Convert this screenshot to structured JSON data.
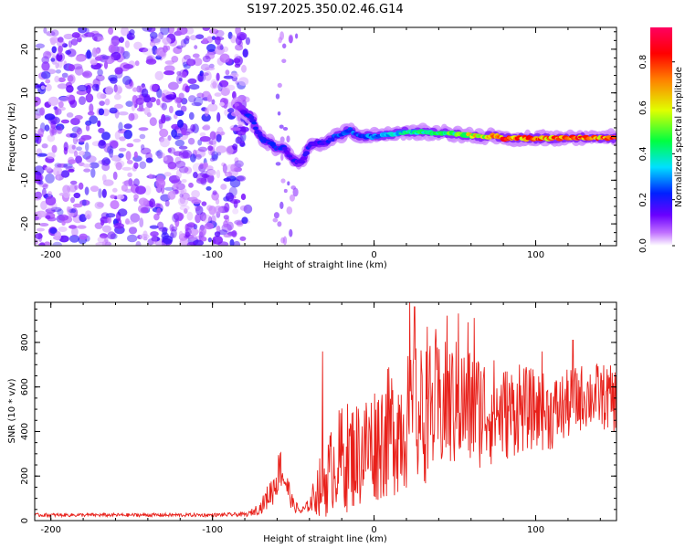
{
  "title": "S197.2025.350.02.46.G14",
  "colors": {
    "snr_line": "#e8201a",
    "axis": "#000000",
    "background": "#ffffff"
  },
  "chart_data": [
    {
      "type": "heatmap",
      "name": "spectrogram",
      "xlabel": "Height of straight line (km)",
      "ylabel": "Frequency (Hz)",
      "xlim": [
        -210,
        150
      ],
      "ylim": [
        -25,
        25
      ],
      "xticks": [
        -200,
        -100,
        0,
        100
      ],
      "yticks": [
        -20,
        -10,
        0,
        10,
        20
      ],
      "xtick_labels": [
        "-200",
        "-100",
        "0",
        "100"
      ],
      "ytick_labels": [
        "-20",
        "-10",
        "0",
        "10",
        "20"
      ],
      "colorbar": {
        "label": "Normalized spectral amplitude",
        "range": [
          0,
          0.95
        ],
        "ticks": [
          0.0,
          0.2,
          0.4,
          0.6,
          0.8
        ],
        "tick_labels": [
          "0.0",
          "0.2",
          "0.4",
          "0.6",
          "0.8"
        ],
        "colormap": [
          "#ffffff",
          "#c070ff",
          "#6a00ff",
          "#0020ff",
          "#00e0ff",
          "#00ff40",
          "#e0ff00",
          "#ff8000",
          "#ff0000",
          "#ff0060"
        ]
      },
      "noise_region": {
        "x_range": [
          -210,
          -78
        ],
        "amplitude": [
          0.05,
          0.3
        ]
      },
      "signal_track": {
        "height_km": [
          -85,
          -80,
          -76,
          -72,
          -68,
          -64,
          -60,
          -56,
          -52,
          -48,
          -44,
          -40,
          -36,
          -30,
          -24,
          -20,
          -15,
          -10,
          0,
          10,
          20,
          30,
          40,
          50,
          60,
          70,
          75,
          80,
          90,
          100,
          110,
          120,
          130,
          140,
          150
        ],
        "frequency_hz": [
          7,
          5.5,
          4.5,
          1,
          -1,
          -1.5,
          -3,
          -2.5,
          -4.5,
          -6,
          -5.5,
          -2,
          -1.5,
          -1.5,
          0,
          0.5,
          1.5,
          0.2,
          0,
          0.5,
          1,
          1,
          0.8,
          0.6,
          0.2,
          0,
          0.3,
          -0.5,
          -0.3,
          -0.5,
          -0.4,
          -0.3,
          -0.3,
          -0.3,
          -0.3
        ],
        "amplitude": [
          0.15,
          0.3,
          0.35,
          0.3,
          0.35,
          0.3,
          0.35,
          0.3,
          0.25,
          0.3,
          0.25,
          0.35,
          0.3,
          0.3,
          0.35,
          0.4,
          0.4,
          0.35,
          0.4,
          0.45,
          0.5,
          0.55,
          0.55,
          0.6,
          0.7,
          0.75,
          0.8,
          0.85,
          0.85,
          0.85,
          0.85,
          0.85,
          0.85,
          0.85,
          0.85
        ]
      }
    },
    {
      "type": "line",
      "name": "snr",
      "xlabel": "Height of straight line (km)",
      "ylabel": "SNR (10 * v/v)",
      "xlim": [
        -210,
        150
      ],
      "ylim": [
        0,
        980
      ],
      "xticks": [
        -200,
        -100,
        0,
        100
      ],
      "yticks": [
        0,
        200,
        400,
        600,
        800
      ],
      "xtick_labels": [
        "-200",
        "-100",
        "0",
        "100"
      ],
      "ytick_labels": [
        "0",
        "200",
        "400",
        "600",
        "800"
      ],
      "series": [
        {
          "name": "SNR",
          "envelope_x": [
            -210,
            -100,
            -78,
            -70,
            -62,
            -58,
            -55,
            -50,
            -45,
            -40,
            -35,
            -30,
            -25,
            -20,
            -10,
            0,
            10,
            20,
            30,
            40,
            50,
            60,
            70,
            80,
            90,
            100,
            110,
            120,
            130,
            140,
            150
          ],
          "envelope_mean": [
            25,
            25,
            28,
            60,
            150,
            240,
            180,
            70,
            40,
            70,
            140,
            180,
            250,
            280,
            300,
            350,
            400,
            450,
            470,
            500,
            520,
            500,
            500,
            480,
            500,
            500,
            480,
            520,
            560,
            560,
            540
          ],
          "envelope_amp": [
            8,
            8,
            10,
            30,
            80,
            100,
            80,
            30,
            20,
            30,
            120,
            170,
            200,
            250,
            250,
            270,
            300,
            320,
            330,
            300,
            300,
            280,
            260,
            220,
            200,
            180,
            170,
            160,
            150,
            150,
            150
          ],
          "peak_x": [
            -58,
            -32,
            22,
            25,
            33,
            38,
            45,
            52,
            58,
            62,
            90,
            104,
            123
          ],
          "peak_y": [
            300,
            760,
            980,
            960,
            870,
            860,
            920,
            930,
            890,
            910,
            700,
            760,
            810
          ]
        }
      ]
    }
  ]
}
